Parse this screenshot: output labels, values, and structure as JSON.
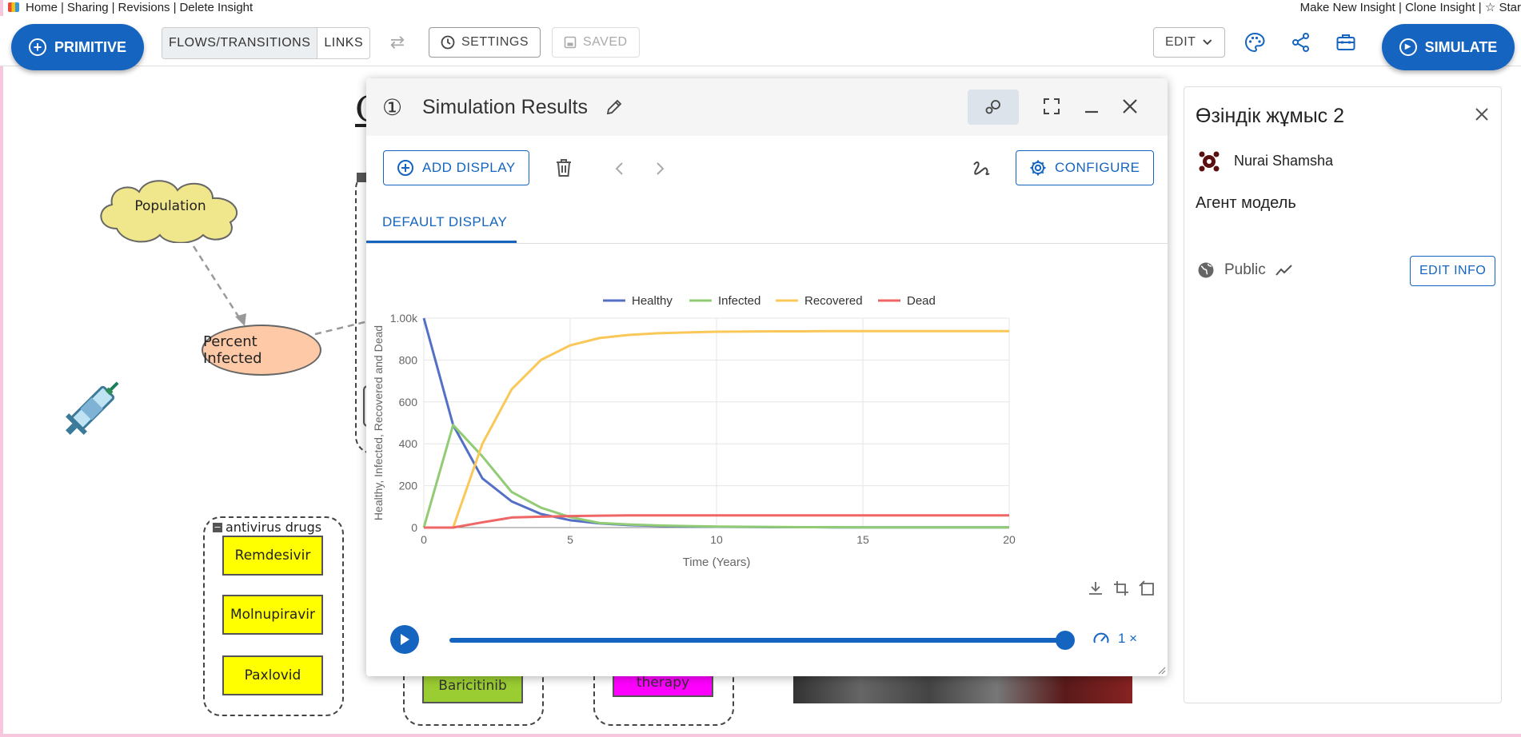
{
  "top_nav": {
    "left": [
      "Home",
      "Sharing",
      "Revisions",
      "Delete Insight"
    ],
    "right": [
      "Make New Insight",
      "Clone Insight",
      "☆ Star"
    ]
  },
  "toolbar": {
    "primitive_label": "PRIMITIVE",
    "flows_label": "FLOWS/TRANSITIONS",
    "links_label": "LINKS",
    "settings_label": "SETTINGS",
    "saved_label": "SAVED",
    "edit_label": "EDIT",
    "simulate_label": "SIMULATE"
  },
  "canvas": {
    "population_label": "Population",
    "percent_infected_label": "Percent Infected",
    "folder_label": "antivirus drugs",
    "drugs": [
      "Remdesivir",
      "Molnupiravir",
      "Paxlovid"
    ],
    "baricitinib_label": "Baricitinib",
    "therapy_label": "therapy",
    "title_fragment": "C"
  },
  "results_window": {
    "number": "①",
    "title": "Simulation Results",
    "add_display_label": "ADD DISPLAY",
    "configure_label": "CONFIGURE",
    "tab_label": "DEFAULT DISPLAY",
    "speed_label": "1 ×",
    "progress": 1.0
  },
  "chart_data": {
    "type": "line",
    "xlabel": "Time (Years)",
    "ylabel": "Healthy, Infected, Recovered and Dead",
    "xlim": [
      0,
      20
    ],
    "ylim": [
      0,
      1000
    ],
    "xticks": [
      "0",
      "5",
      "10",
      "15",
      "20"
    ],
    "yticks": [
      "0",
      "200",
      "400",
      "600",
      "800",
      "1.00k"
    ],
    "legend_position": "top-center",
    "grid": true,
    "x": [
      0,
      1,
      2,
      3,
      4,
      5,
      6,
      7,
      8,
      9,
      10,
      11,
      12,
      13,
      14,
      15,
      16,
      17,
      18,
      19,
      20
    ],
    "series": [
      {
        "name": "Healthy",
        "color": "#5470c6",
        "values": [
          1000,
          490,
          235,
          125,
          65,
          35,
          20,
          12,
          8,
          5,
          4,
          3,
          2,
          2,
          1,
          1,
          1,
          1,
          1,
          1,
          1
        ]
      },
      {
        "name": "Infected",
        "color": "#91cc75",
        "values": [
          0,
          490,
          340,
          170,
          95,
          50,
          22,
          15,
          10,
          7,
          5,
          4,
          3,
          2,
          2,
          1,
          1,
          1,
          1,
          1,
          1
        ]
      },
      {
        "name": "Recovered",
        "color": "#fac858",
        "values": [
          0,
          0,
          400,
          660,
          800,
          870,
          905,
          920,
          928,
          932,
          935,
          936,
          937,
          937,
          938,
          938,
          938,
          938,
          938,
          938,
          938
        ]
      },
      {
        "name": "Dead",
        "color": "#ee6666",
        "values": [
          0,
          0,
          25,
          48,
          52,
          55,
          57,
          58,
          58,
          58,
          58,
          58,
          58,
          58,
          58,
          58,
          58,
          58,
          58,
          58,
          58
        ]
      }
    ]
  },
  "info_panel": {
    "title": "Өзіндік жұмыс 2",
    "user_name": "Nurai Shamsha",
    "description": "Агент модель",
    "visibility": "Public",
    "edit_info_label": "EDIT INFO"
  }
}
